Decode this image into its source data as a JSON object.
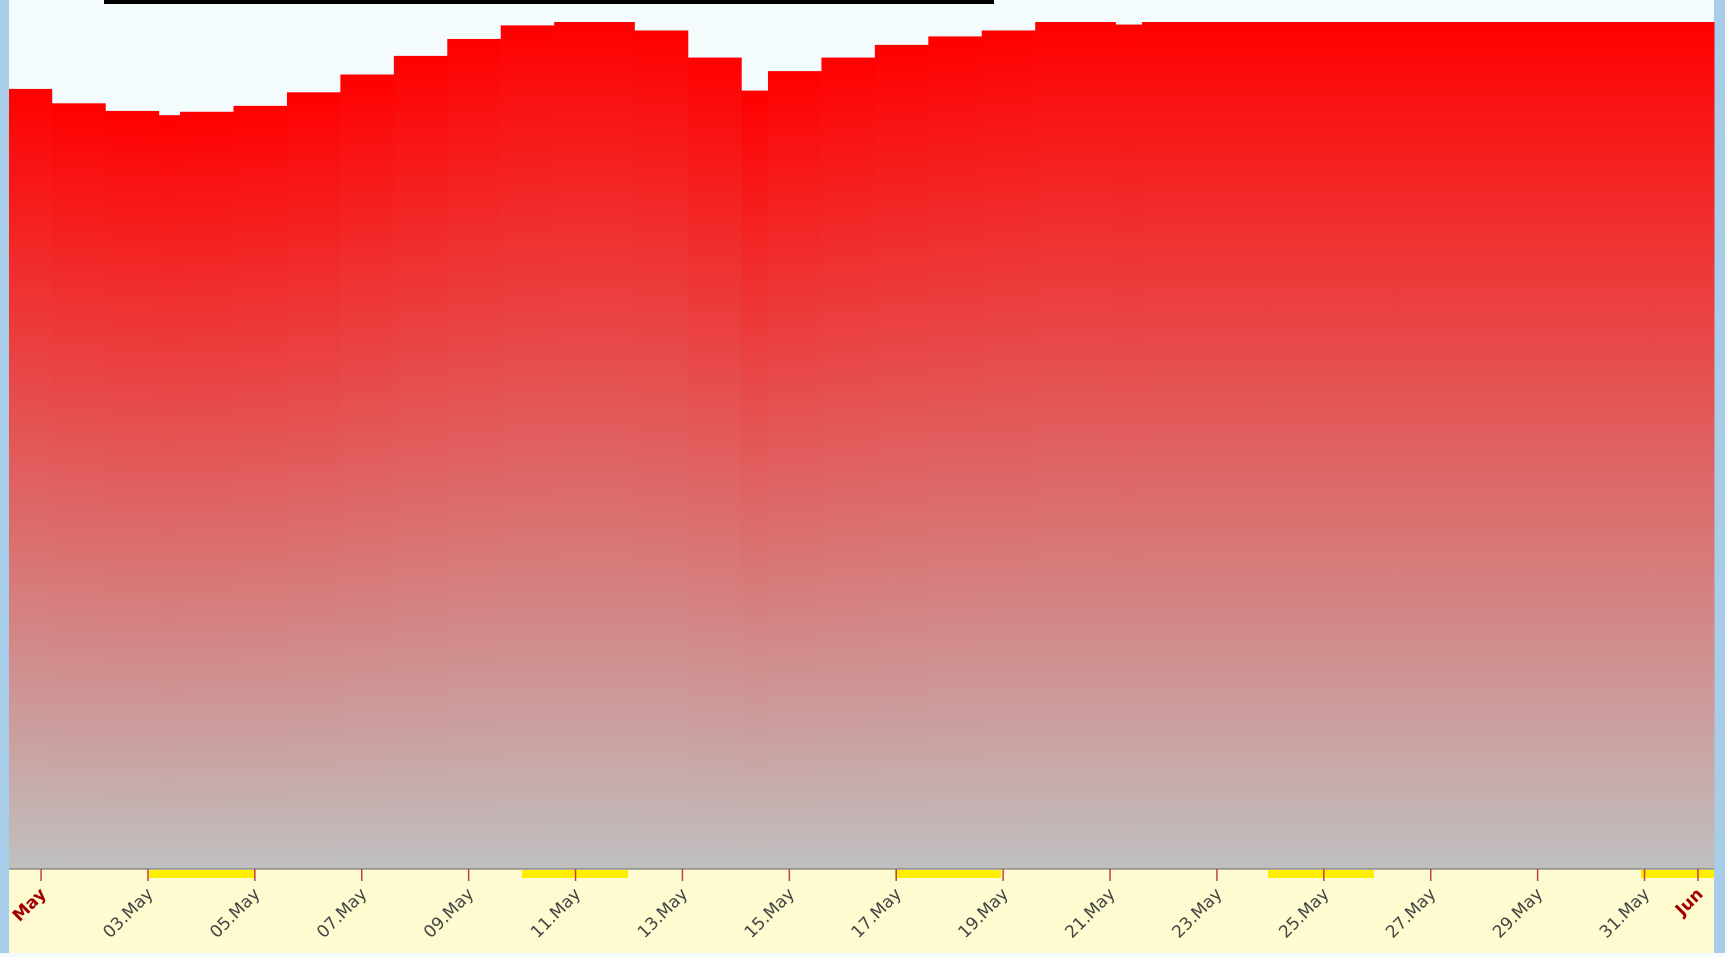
{
  "chart_data": {
    "type": "step-area",
    "x": [
      -0.6,
      0.2,
      1.2,
      2.2,
      2.6,
      3.6,
      4.6,
      5.6,
      6.6,
      7.6,
      8.6,
      9.6,
      11.1,
      12.1,
      13.1,
      13.6,
      14.6,
      15.6,
      16.6,
      17.6,
      18.6,
      20.1,
      20.6
    ],
    "values": [
      92.1,
      90.4,
      89.5,
      89,
      89.4,
      90.1,
      91.7,
      93.8,
      96,
      98,
      99.6,
      100,
      99,
      95.8,
      91.9,
      94.2,
      95.8,
      97.3,
      98.3,
      99,
      100,
      99.7,
      100
    ],
    "color": "#ff0000",
    "xlim": [
      -0.6,
      31.3
    ],
    "ylim": [
      0,
      100
    ],
    "xticks": [
      {
        "value": 0,
        "label": "May"
      },
      {
        "value": 2,
        "label": "03.May"
      },
      {
        "value": 4,
        "label": "05.May"
      },
      {
        "value": 6,
        "label": "07.May"
      },
      {
        "value": 8,
        "label": "09.May"
      },
      {
        "value": 10,
        "label": "11.May"
      },
      {
        "value": 12,
        "label": "13.May"
      },
      {
        "value": 14,
        "label": "15.May"
      },
      {
        "value": 16,
        "label": "17.May"
      },
      {
        "value": 18,
        "label": "19.May"
      },
      {
        "value": 20,
        "label": "21.May"
      },
      {
        "value": 22,
        "label": "23.May"
      },
      {
        "value": 24,
        "label": "25.May"
      },
      {
        "value": 26,
        "label": "27.May"
      },
      {
        "value": 28,
        "label": "29.May"
      },
      {
        "value": 30,
        "label": "31.May"
      },
      {
        "value": 31,
        "label": "Jun"
      }
    ]
  }
}
